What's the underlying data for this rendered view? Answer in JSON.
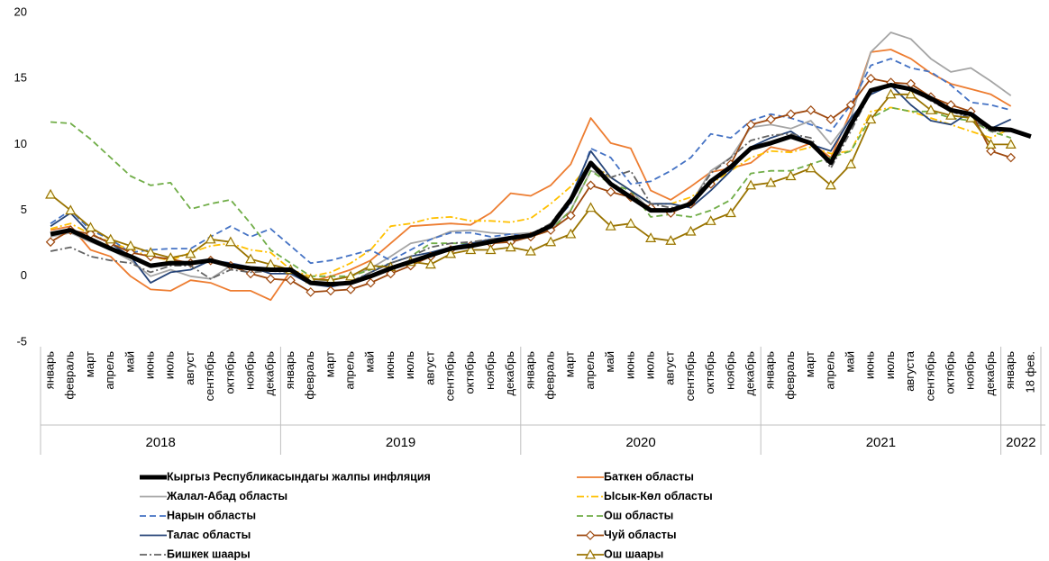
{
  "chart_data": {
    "type": "line",
    "ylim": [
      -5,
      20
    ],
    "yticks": [
      -5,
      0,
      5,
      10,
      15,
      20
    ],
    "groups": [
      {
        "label": "2018",
        "categories": [
          "январь",
          "февраль",
          "март",
          "апрель",
          "май",
          "июнь",
          "июль",
          "август",
          "сентябрь",
          "октябрь",
          "ноябрь",
          "декабрь"
        ]
      },
      {
        "label": "2019",
        "categories": [
          "январь",
          "февраль",
          "март",
          "апрель",
          "май",
          "июнь",
          "июль",
          "август",
          "сентябрь",
          "октябрь",
          "ноябрь",
          "декабрь"
        ]
      },
      {
        "label": "2020",
        "categories": [
          "январь",
          "февраль",
          "март",
          "апрель",
          "май",
          "июнь",
          "июль",
          "август",
          "сентябрь",
          "октябрь",
          "ноябрь",
          "декабрь"
        ]
      },
      {
        "label": "2021",
        "categories": [
          "январь",
          "февраль",
          "март",
          "апрель",
          "май",
          "июнь",
          "июль",
          "августа",
          "сентябрь",
          "октябрь",
          "ноябрь",
          "декабрь"
        ]
      },
      {
        "label": "2022",
        "categories": [
          "январь",
          "18 фев."
        ]
      }
    ],
    "series": [
      {
        "name": "Кыргыз Республикасындагы жалпы инфляция",
        "color": "#000000",
        "width": 5,
        "values": [
          3.2,
          3.5,
          2.8,
          2.1,
          1.5,
          0.8,
          1.0,
          1.0,
          1.2,
          0.8,
          0.6,
          0.5,
          0.5,
          -0.5,
          -0.6,
          -0.5,
          0.0,
          0.6,
          1.1,
          1.6,
          2.1,
          2.3,
          2.6,
          2.9,
          3.1,
          3.8,
          5.8,
          8.6,
          7.0,
          6.0,
          5.0,
          5.0,
          5.5,
          7.2,
          8.3,
          9.7,
          10.1,
          10.6,
          10.1,
          8.6,
          11.5,
          14.1,
          14.5,
          14.2,
          13.5,
          12.6,
          12.3,
          11.2,
          11.1,
          10.6
        ]
      },
      {
        "name": "Баткен областы",
        "color": "#ed7d31",
        "width": 1.8,
        "values": [
          3.5,
          3.8,
          2.0,
          1.5,
          0.0,
          -1.0,
          -1.1,
          -0.3,
          -0.5,
          -1.1,
          -1.1,
          -1.8,
          0.4,
          -0.4,
          0.0,
          0.5,
          1.2,
          2.5,
          3.8,
          3.9,
          4.0,
          3.9,
          4.8,
          6.3,
          6.1,
          6.9,
          8.5,
          12.0,
          10.1,
          9.7,
          6.5,
          5.8,
          6.8,
          7.9,
          8.2,
          8.6,
          9.8,
          9.5,
          10.1,
          9.0,
          12.5,
          17.0,
          17.2,
          16.5,
          15.4,
          14.6,
          14.2,
          13.8,
          12.9,
          null
        ]
      },
      {
        "name": "Жалал-Абад областы",
        "color": "#a5a5a5",
        "width": 1.8,
        "values": [
          3.0,
          3.3,
          2.6,
          2.0,
          1.2,
          0.0,
          0.5,
          0.0,
          -0.2,
          0.8,
          0.7,
          0.4,
          0.4,
          -0.3,
          -0.3,
          0.0,
          0.6,
          1.5,
          2.5,
          2.8,
          3.4,
          3.5,
          3.3,
          3.2,
          3.3,
          3.6,
          5.0,
          8.0,
          7.5,
          6.5,
          5.0,
          5.0,
          5.5,
          8.0,
          9.0,
          11.3,
          11.5,
          11.2,
          11.8,
          10.0,
          12.0,
          17.0,
          18.5,
          18.0,
          16.5,
          15.5,
          15.8,
          14.8,
          13.7,
          null
        ]
      },
      {
        "name": "Ысык-Көл областы",
        "color": "#ffc000",
        "width": 1.8,
        "dash": "dashdot",
        "values": [
          3.6,
          4.0,
          3.2,
          2.6,
          2.0,
          1.5,
          1.2,
          1.8,
          2.3,
          2.5,
          2.0,
          1.8,
          0.5,
          0.0,
          0.3,
          1.0,
          2.0,
          3.8,
          4.0,
          4.4,
          4.5,
          4.2,
          4.2,
          4.1,
          4.4,
          5.5,
          6.8,
          8.6,
          7.5,
          6.5,
          5.5,
          5.5,
          6.0,
          7.0,
          8.0,
          9.0,
          9.5,
          9.4,
          9.8,
          9.3,
          9.5,
          12.5,
          12.8,
          12.5,
          12.0,
          11.5,
          11.0,
          10.5,
          11.2,
          null
        ]
      },
      {
        "name": "Нарын областы",
        "color": "#4472c4",
        "width": 1.8,
        "dash": "dashed",
        "values": [
          4.0,
          5.0,
          3.5,
          2.8,
          1.8,
          2.0,
          2.1,
          2.1,
          3.0,
          3.8,
          3.0,
          3.6,
          2.3,
          1.0,
          1.2,
          1.6,
          2.0,
          1.2,
          2.0,
          2.8,
          3.3,
          3.3,
          3.0,
          3.2,
          3.0,
          3.8,
          5.5,
          9.7,
          9.0,
          7.0,
          7.2,
          8.0,
          9.0,
          10.8,
          10.5,
          11.8,
          12.3,
          12.0,
          11.5,
          11.0,
          13.0,
          16.0,
          16.5,
          15.8,
          15.5,
          14.5,
          13.2,
          13.0,
          12.6,
          null
        ]
      },
      {
        "name": "Ош областы",
        "color": "#70ad47",
        "width": 1.8,
        "dash": "dashed",
        "values": [
          11.7,
          11.6,
          10.4,
          9.0,
          7.6,
          6.9,
          7.1,
          5.1,
          5.5,
          5.8,
          4.0,
          2.0,
          1.0,
          0.0,
          0.0,
          0.0,
          0.5,
          1.0,
          1.5,
          2.5,
          2.5,
          2.5,
          2.5,
          2.7,
          3.0,
          3.5,
          5.0,
          8.0,
          7.0,
          6.5,
          4.5,
          4.7,
          4.5,
          5.0,
          5.8,
          7.8,
          8.0,
          8.0,
          8.5,
          9.0,
          9.5,
          12.0,
          12.8,
          12.5,
          12.5,
          12.0,
          11.8,
          11.0,
          10.5,
          null
        ]
      },
      {
        "name": "Талас областы",
        "color": "#264478",
        "width": 1.8,
        "values": [
          3.8,
          4.8,
          3.2,
          2.5,
          1.5,
          -0.5,
          0.3,
          0.5,
          1.2,
          1.0,
          0.7,
          0.2,
          0.2,
          -0.6,
          -0.8,
          -0.5,
          0.3,
          1.0,
          1.5,
          1.8,
          2.2,
          2.5,
          2.8,
          3.0,
          3.2,
          3.8,
          6.0,
          9.5,
          7.5,
          6.5,
          5.5,
          5.5,
          5.2,
          6.5,
          8.0,
          9.8,
          10.5,
          11.0,
          10.0,
          9.5,
          12.0,
          13.8,
          14.5,
          13.0,
          11.8,
          11.5,
          12.5,
          11.2,
          11.9,
          null
        ]
      },
      {
        "name": "Чуй областы",
        "color": "#9e480e",
        "width": 1.8,
        "marker": "diamond",
        "values": [
          2.6,
          3.5,
          3.2,
          2.5,
          1.8,
          1.5,
          1.3,
          1.0,
          1.2,
          0.8,
          0.2,
          -0.2,
          -0.3,
          -1.2,
          -1.1,
          -1.0,
          -0.5,
          0.2,
          0.8,
          1.5,
          2.0,
          2.3,
          2.5,
          2.6,
          3.0,
          3.5,
          4.6,
          6.9,
          6.4,
          6.0,
          5.2,
          4.8,
          5.5,
          7.0,
          8.5,
          11.5,
          11.9,
          12.3,
          12.6,
          11.9,
          13.0,
          15.0,
          14.7,
          14.6,
          13.6,
          13.0,
          12.5,
          9.5,
          9.0,
          null
        ]
      },
      {
        "name": "Бишкек шаары",
        "color": "#636363",
        "width": 1.8,
        "dash": "dashdot",
        "values": [
          1.9,
          2.2,
          1.5,
          1.2,
          1.0,
          0.3,
          0.8,
          0.8,
          -0.2,
          0.5,
          0.3,
          0.4,
          0.3,
          -0.5,
          -0.6,
          -0.4,
          0.3,
          1.0,
          1.5,
          2.2,
          2.5,
          2.6,
          2.8,
          3.0,
          3.2,
          4.0,
          6.0,
          8.5,
          7.5,
          8.0,
          5.5,
          5.2,
          5.5,
          7.8,
          9.0,
          10.3,
          10.7,
          10.8,
          10.5,
          8.2,
          11.0,
          14.0,
          14.5,
          14.2,
          13.3,
          12.5,
          12.0,
          11.0,
          11.0,
          null
        ]
      },
      {
        "name": "Ош шаары",
        "color": "#997300",
        "width": 1.8,
        "marker": "triangle",
        "values": [
          6.2,
          5.0,
          3.7,
          2.8,
          2.3,
          1.8,
          1.4,
          1.7,
          2.8,
          2.6,
          1.3,
          0.9,
          0.5,
          -0.2,
          -0.3,
          0.0,
          0.8,
          0.7,
          1.1,
          0.9,
          1.7,
          2.0,
          2.0,
          2.2,
          1.9,
          2.6,
          3.2,
          5.2,
          3.8,
          4.0,
          2.9,
          2.7,
          3.4,
          4.2,
          4.8,
          6.9,
          7.1,
          7.6,
          8.2,
          6.9,
          8.5,
          11.9,
          13.8,
          13.8,
          12.6,
          12.2,
          12.0,
          10.0,
          10.0,
          null
        ]
      }
    ]
  }
}
